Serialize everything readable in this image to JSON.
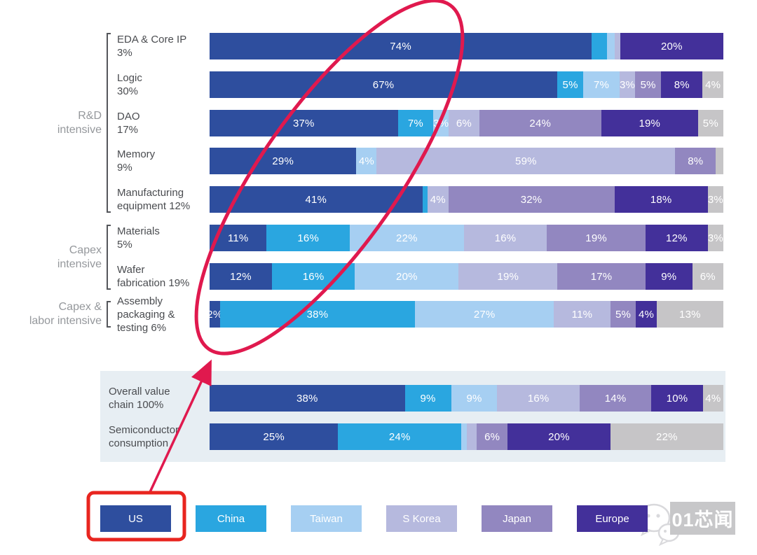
{
  "watermark": {
    "text": "01芯闻"
  },
  "colors": {
    "us": "#2e4e9e",
    "china": "#2aa6e0",
    "taiwan": "#a6cff2",
    "s_korea": "#b6b9de",
    "japan": "#9287c0",
    "europe": "#43309a",
    "others": "#c6c5c7",
    "panel_bg": "#e7eef3",
    "category_text": "#4a4c50",
    "group_text": "#95989c",
    "bar_label_text": "#ffffff"
  },
  "annotations": {
    "ellipse_color": "#e0194e",
    "arrow_color": "#e0194e",
    "highlight_box_color": "#e8251f"
  },
  "legend": {
    "items": [
      {
        "label": "US",
        "region": "us",
        "highlighted": true
      },
      {
        "label": "China",
        "region": "china",
        "highlighted": false
      },
      {
        "label": "Taiwan",
        "region": "taiwan",
        "highlighted": false
      },
      {
        "label": "S Korea",
        "region": "s_korea",
        "highlighted": false
      },
      {
        "label": "Japan",
        "region": "japan",
        "highlighted": false
      },
      {
        "label": "Europe",
        "region": "europe",
        "highlighted": false
      }
    ]
  },
  "chart_data": {
    "type": "bar",
    "stacked": true,
    "orientation": "horizontal",
    "unit": "%",
    "legend": [
      "US",
      "China",
      "Taiwan",
      "S Korea",
      "Japan",
      "Europe"
    ],
    "groups": [
      {
        "label_lines": [
          "R&D",
          "intensive"
        ],
        "first_row": 0,
        "last_row": 4
      },
      {
        "label_lines": [
          "Capex",
          "intensive"
        ],
        "first_row": 5,
        "last_row": 6
      },
      {
        "label_lines": [
          "Capex &",
          "labor intensive"
        ],
        "first_row": 7,
        "last_row": 7
      }
    ],
    "rows": [
      {
        "category": "EDA & Core IP 3%",
        "category_lines": [
          "EDA & Core IP",
          "3%"
        ],
        "segments": [
          {
            "region": "us",
            "value": 74,
            "label": "74%"
          },
          {
            "region": "china",
            "value": 3,
            "label": ""
          },
          {
            "region": "taiwan",
            "value": 1.5,
            "label": ""
          },
          {
            "region": "s_korea",
            "value": 1,
            "label": ""
          },
          {
            "region": "europe",
            "value": 20,
            "label": "20%"
          }
        ]
      },
      {
        "category": "Logic 30%",
        "category_lines": [
          "Logic",
          "30%"
        ],
        "segments": [
          {
            "region": "us",
            "value": 67,
            "label": "67%"
          },
          {
            "region": "china",
            "value": 5,
            "label": "5%"
          },
          {
            "region": "taiwan",
            "value": 7,
            "label": "7%"
          },
          {
            "region": "s_korea",
            "value": 3,
            "label": "3%"
          },
          {
            "region": "japan",
            "value": 5,
            "label": "5%"
          },
          {
            "region": "europe",
            "value": 8,
            "label": "8%"
          },
          {
            "region": "others",
            "value": 4,
            "label": "4%"
          }
        ]
      },
      {
        "category": "DAO 17%",
        "category_lines": [
          "DAO",
          "17%"
        ],
        "segments": [
          {
            "region": "us",
            "value": 37,
            "label": "37%"
          },
          {
            "region": "china",
            "value": 7,
            "label": "7%"
          },
          {
            "region": "taiwan",
            "value": 3,
            "label": "3%"
          },
          {
            "region": "s_korea",
            "value": 6,
            "label": "6%"
          },
          {
            "region": "japan",
            "value": 24,
            "label": "24%"
          },
          {
            "region": "europe",
            "value": 19,
            "label": "19%"
          },
          {
            "region": "others",
            "value": 5,
            "label": "5%"
          }
        ]
      },
      {
        "category": "Memory 9%",
        "category_lines": [
          "Memory",
          "9%"
        ],
        "segments": [
          {
            "region": "us",
            "value": 29,
            "label": "29%"
          },
          {
            "region": "taiwan",
            "value": 4,
            "label": "4%"
          },
          {
            "region": "s_korea",
            "value": 59,
            "label": "59%"
          },
          {
            "region": "japan",
            "value": 8,
            "label": "8%"
          },
          {
            "region": "others",
            "value": 1.5,
            "label": ""
          }
        ]
      },
      {
        "category": "Manufacturing equipment 12%",
        "category_lines": [
          "Manufacturing",
          "equipment 12%"
        ],
        "segments": [
          {
            "region": "us",
            "value": 41,
            "label": "41%"
          },
          {
            "region": "china",
            "value": 1,
            "label": ""
          },
          {
            "region": "s_korea",
            "value": 4,
            "label": "4%"
          },
          {
            "region": "japan",
            "value": 32,
            "label": "32%"
          },
          {
            "region": "europe",
            "value": 18,
            "label": "18%"
          },
          {
            "region": "others",
            "value": 3,
            "label": "3%"
          }
        ]
      },
      {
        "category": "Materials 5%",
        "category_lines": [
          "Materials",
          "5%"
        ],
        "segments": [
          {
            "region": "us",
            "value": 11,
            "label": "11%"
          },
          {
            "region": "china",
            "value": 16,
            "label": "16%"
          },
          {
            "region": "taiwan",
            "value": 22,
            "label": "22%"
          },
          {
            "region": "s_korea",
            "value": 16,
            "label": "16%"
          },
          {
            "region": "japan",
            "value": 19,
            "label": "19%"
          },
          {
            "region": "europe",
            "value": 12,
            "label": "12%"
          },
          {
            "region": "others",
            "value": 3,
            "label": "3%"
          }
        ]
      },
      {
        "category": "Wafer fabrication 19%",
        "category_lines": [
          "Wafer",
          "fabrication 19%"
        ],
        "segments": [
          {
            "region": "us",
            "value": 12,
            "label": "12%"
          },
          {
            "region": "china",
            "value": 16,
            "label": "16%"
          },
          {
            "region": "taiwan",
            "value": 20,
            "label": "20%"
          },
          {
            "region": "s_korea",
            "value": 19,
            "label": "19%"
          },
          {
            "region": "japan",
            "value": 17,
            "label": "17%"
          },
          {
            "region": "europe",
            "value": 9,
            "label": "9%"
          },
          {
            "region": "others",
            "value": 6,
            "label": "6%"
          }
        ]
      },
      {
        "category": "Assembly packaging & testing 6%",
        "category_lines": [
          "Assembly",
          "packaging &",
          "testing 6%"
        ],
        "segments": [
          {
            "region": "us",
            "value": 2,
            "label": "2%"
          },
          {
            "region": "china",
            "value": 38,
            "label": "38%"
          },
          {
            "region": "taiwan",
            "value": 27,
            "label": "27%"
          },
          {
            "region": "s_korea",
            "value": 11,
            "label": "11%"
          },
          {
            "region": "japan",
            "value": 5,
            "label": "5%"
          },
          {
            "region": "europe",
            "value": 4,
            "label": "4%"
          },
          {
            "region": "others",
            "value": 13,
            "label": "13%"
          }
        ]
      },
      {
        "category": "Overall value chain 100%",
        "category_lines": [
          "Overall value",
          "chain 100%"
        ],
        "segments": [
          {
            "region": "us",
            "value": 38,
            "label": "38%"
          },
          {
            "region": "china",
            "value": 9,
            "label": "9%"
          },
          {
            "region": "taiwan",
            "value": 9,
            "label": "9%"
          },
          {
            "region": "s_korea",
            "value": 16,
            "label": "16%"
          },
          {
            "region": "japan",
            "value": 14,
            "label": "14%"
          },
          {
            "region": "europe",
            "value": 10,
            "label": "10%"
          },
          {
            "region": "others",
            "value": 4,
            "label": "4%"
          }
        ]
      },
      {
        "category": "Semiconductor consumption",
        "category_lines": [
          "Semiconductor",
          "consumption"
        ],
        "segments": [
          {
            "region": "us",
            "value": 25,
            "label": "25%"
          },
          {
            "region": "china",
            "value": 24,
            "label": "24%"
          },
          {
            "region": "taiwan",
            "value": 1,
            "label": ""
          },
          {
            "region": "s_korea",
            "value": 2,
            "label": ""
          },
          {
            "region": "japan",
            "value": 6,
            "label": "6%"
          },
          {
            "region": "europe",
            "value": 20,
            "label": "20%"
          },
          {
            "region": "others",
            "value": 22,
            "label": "22%"
          }
        ]
      }
    ]
  }
}
